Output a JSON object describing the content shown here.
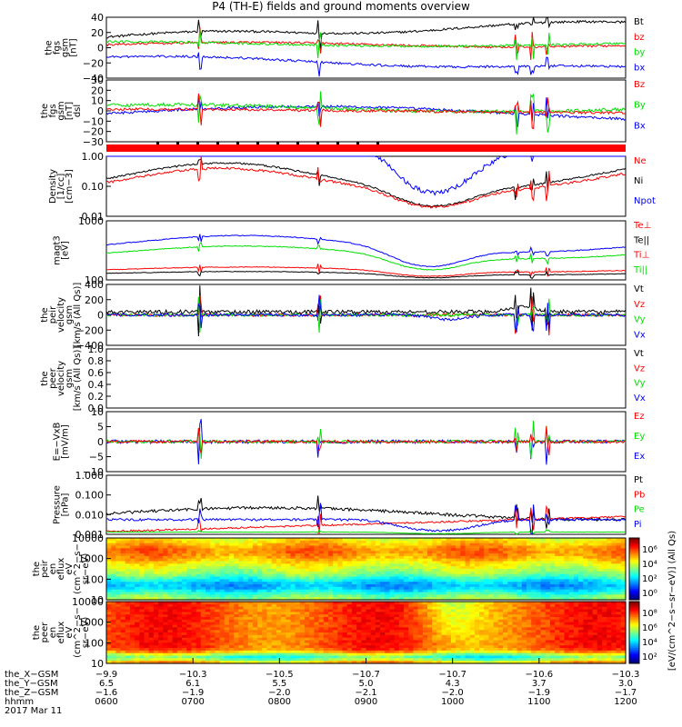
{
  "title": "P4 (TH-E) fields and ground moments overview",
  "date_label": "2017 Mar 11",
  "colors": {
    "black": "#000000",
    "red": "#ff0000",
    "green": "#00e000",
    "blue": "#0000ff"
  },
  "chart_data": [
    {
      "type": "line",
      "ylabel": [
        "the",
        "fgs",
        "gsm",
        "[nT]"
      ],
      "yticks": [
        "40",
        "20",
        "0",
        "−20",
        "−40"
      ],
      "legend": [
        {
          "name": "Bt",
          "color": "black"
        },
        {
          "name": "bz",
          "color": "red"
        },
        {
          "name": "by",
          "color": "green"
        },
        {
          "name": "bx",
          "color": "blue"
        }
      ]
    },
    {
      "type": "line",
      "ylabel": [
        "the",
        "fgs",
        "gsm",
        "[nT]",
        "dsl"
      ],
      "yticks": [
        "30",
        "20",
        "10",
        "0",
        "−10",
        "−20",
        "−30"
      ],
      "legend": [
        {
          "name": "Bz",
          "color": "red"
        },
        {
          "name": "By",
          "color": "green"
        },
        {
          "name": "Bx",
          "color": "blue"
        }
      ]
    },
    {
      "type": "line",
      "scale": "log",
      "ylabel": [
        "Density",
        "[1/cc]",
        "[cm−3]"
      ],
      "yticks": [
        "1.00",
        "0.10",
        "0.01"
      ],
      "legend": [
        {
          "name": "Ne",
          "color": "red"
        },
        {
          "name": "Ni",
          "color": "black"
        },
        {
          "name": "Npot",
          "color": "blue"
        }
      ]
    },
    {
      "type": "line",
      "scale": "log",
      "ylabel": [
        "magt3",
        "[eV]"
      ],
      "yticks": [
        "1000",
        "100"
      ],
      "legend": [
        {
          "name": "Te⊥",
          "color": "red"
        },
        {
          "name": "Te||",
          "color": "black"
        },
        {
          "name": "Ti⊥",
          "color": "red"
        },
        {
          "name": "Ti||",
          "color": "green"
        }
      ]
    },
    {
      "type": "line",
      "ylabel": [
        "the",
        "peir",
        "velocity",
        "gsm",
        "[km/s (All Qs)]"
      ],
      "yticks": [
        "400",
        "200",
        "0",
        "−200",
        "−400"
      ],
      "legend": [
        {
          "name": "Vt",
          "color": "black"
        },
        {
          "name": "Vz",
          "color": "red"
        },
        {
          "name": "Vy",
          "color": "green"
        },
        {
          "name": "Vx",
          "color": "blue"
        }
      ]
    },
    {
      "type": "line",
      "ylabel": [
        "the",
        "peer",
        "velocity",
        "gsm",
        "[km/s (All Qs)]"
      ],
      "yticks": [
        "1.0",
        "0.8",
        "0.6",
        "0.4",
        "0.2",
        "0.0"
      ],
      "legend": [
        {
          "name": "Vt",
          "color": "black"
        },
        {
          "name": "Vz",
          "color": "red"
        },
        {
          "name": "Vy",
          "color": "green"
        },
        {
          "name": "Vx",
          "color": "blue"
        }
      ]
    },
    {
      "type": "line",
      "ylabel": [
        "E=−VxB",
        "[mV/m]"
      ],
      "yticks": [
        "10",
        "5",
        "0",
        "−5",
        "−10"
      ],
      "legend": [
        {
          "name": "Ez",
          "color": "red"
        },
        {
          "name": "Ey",
          "color": "green"
        },
        {
          "name": "Ex",
          "color": "blue"
        }
      ]
    },
    {
      "type": "line",
      "scale": "log",
      "ylabel": [
        "Pressure",
        "[nPa]"
      ],
      "yticks": [
        "1.000",
        "0.100",
        "0.010",
        "0.001"
      ],
      "legend": [
        {
          "name": "Pt",
          "color": "black"
        },
        {
          "name": "Pb",
          "color": "red"
        },
        {
          "name": "Pe",
          "color": "green"
        },
        {
          "name": "Pi",
          "color": "blue"
        }
      ]
    },
    {
      "type": "heatmap",
      "ylabel": [
        "the",
        "peir",
        "en",
        "eflux",
        "eV",
        "(cm^2−s−",
        "sr−eV)"
      ],
      "yticks": [
        "10000",
        "1000",
        "100",
        "10"
      ]
    },
    {
      "type": "heatmap",
      "ylabel": [
        "the",
        "peer",
        "en",
        "eflux",
        "eV",
        "(cm^2−s−",
        "sr−eV)"
      ],
      "yticks": [
        "10000",
        "1000",
        "100",
        "10"
      ]
    }
  ],
  "colorbar": {
    "label": "[eV/(cm^2−s−sr−eV)] (All Qs)",
    "upper_ticks": [
      "10⁶",
      "10⁴",
      "10²",
      "10⁰"
    ],
    "lower_ticks": [
      "10⁸",
      "10⁶",
      "10⁴",
      "10²"
    ]
  },
  "xaxis": {
    "rows": [
      {
        "label": "the_X−GSM",
        "values": [
          "−9.9",
          "−10.3",
          "−10.5",
          "−10.7",
          "−10.7",
          "−10.6",
          "−10.3"
        ]
      },
      {
        "label": "the_Y−GSM",
        "values": [
          "6.5",
          "6.1",
          "5.5",
          "5.0",
          "4.3",
          "3.7",
          "3.0"
        ]
      },
      {
        "label": "the_Z−GSM",
        "values": [
          "−1.6",
          "−1.9",
          "−2.0",
          "−2.1",
          "−2.0",
          "−1.9",
          "−1.7"
        ]
      },
      {
        "label": "hhmm",
        "values": [
          "0600",
          "0700",
          "0800",
          "0900",
          "1000",
          "1100",
          "1200"
        ]
      }
    ]
  }
}
